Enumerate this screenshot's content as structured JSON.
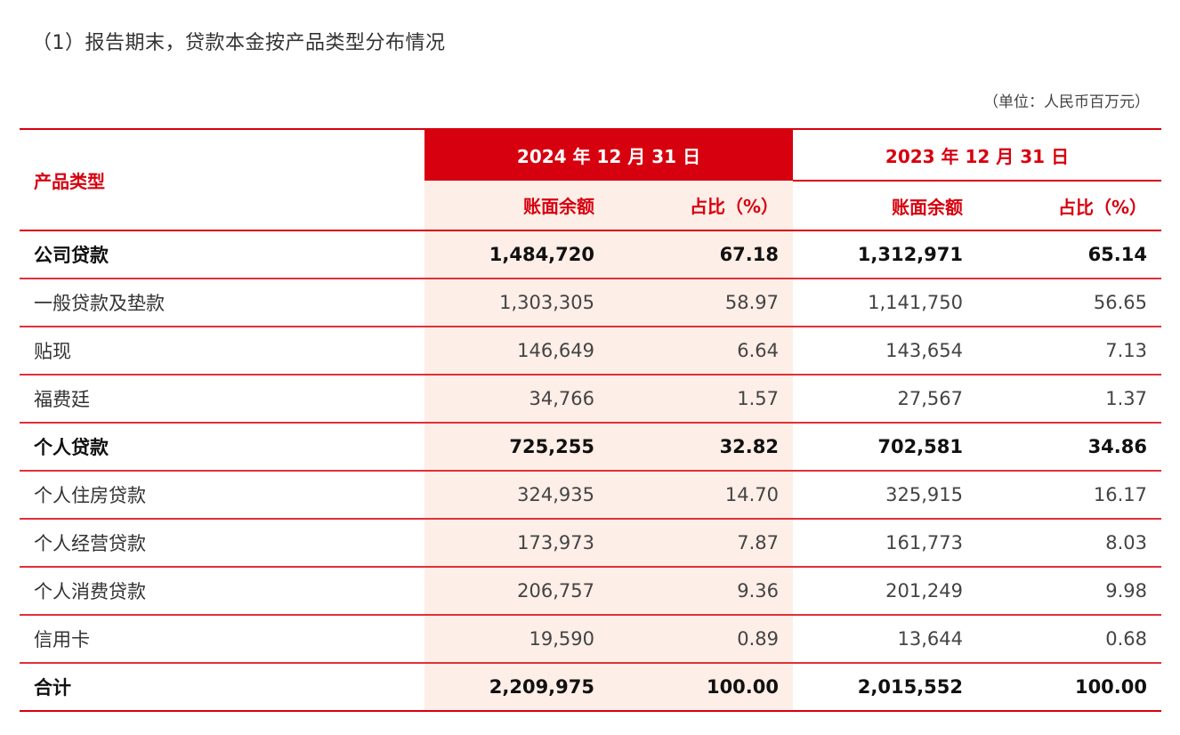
{
  "title": "（1）报告期末，贷款本金按产品类型分布情况",
  "unit": "（单位：人民币百万元）",
  "colors": {
    "accent": "#d7000f",
    "shade": "#fdeee7"
  },
  "header": {
    "type_label": "产品类型",
    "period_2024": "2024 年 12 月 31 日",
    "period_2023": "2023 年 12 月 31 日",
    "col_amount": "账面余额",
    "col_ratio": "占比（%）"
  },
  "rows": [
    {
      "name": "公司贷款",
      "a2024": "1,484,720",
      "r2024": "67.18",
      "a2023": "1,312,971",
      "r2023": "65.14",
      "bold": true
    },
    {
      "name": "一般贷款及垫款",
      "a2024": "1,303,305",
      "r2024": "58.97",
      "a2023": "1,141,750",
      "r2023": "56.65",
      "bold": false
    },
    {
      "name": "贴现",
      "a2024": "146,649",
      "r2024": "6.64",
      "a2023": "143,654",
      "r2023": "7.13",
      "bold": false
    },
    {
      "name": "福费廷",
      "a2024": "34,766",
      "r2024": "1.57",
      "a2023": "27,567",
      "r2023": "1.37",
      "bold": false
    },
    {
      "name": "个人贷款",
      "a2024": "725,255",
      "r2024": "32.82",
      "a2023": "702,581",
      "r2023": "34.86",
      "bold": true
    },
    {
      "name": "个人住房贷款",
      "a2024": "324,935",
      "r2024": "14.70",
      "a2023": "325,915",
      "r2023": "16.17",
      "bold": false
    },
    {
      "name": "个人经营贷款",
      "a2024": "173,973",
      "r2024": "7.87",
      "a2023": "161,773",
      "r2023": "8.03",
      "bold": false
    },
    {
      "name": "个人消费贷款",
      "a2024": "206,757",
      "r2024": "9.36",
      "a2023": "201,249",
      "r2023": "9.98",
      "bold": false
    },
    {
      "name": "信用卡",
      "a2024": "19,590",
      "r2024": "0.89",
      "a2023": "13,644",
      "r2023": "0.68",
      "bold": false
    },
    {
      "name": "合计",
      "a2024": "2,209,975",
      "r2024": "100.00",
      "a2023": "2,015,552",
      "r2023": "100.00",
      "bold": true
    }
  ]
}
